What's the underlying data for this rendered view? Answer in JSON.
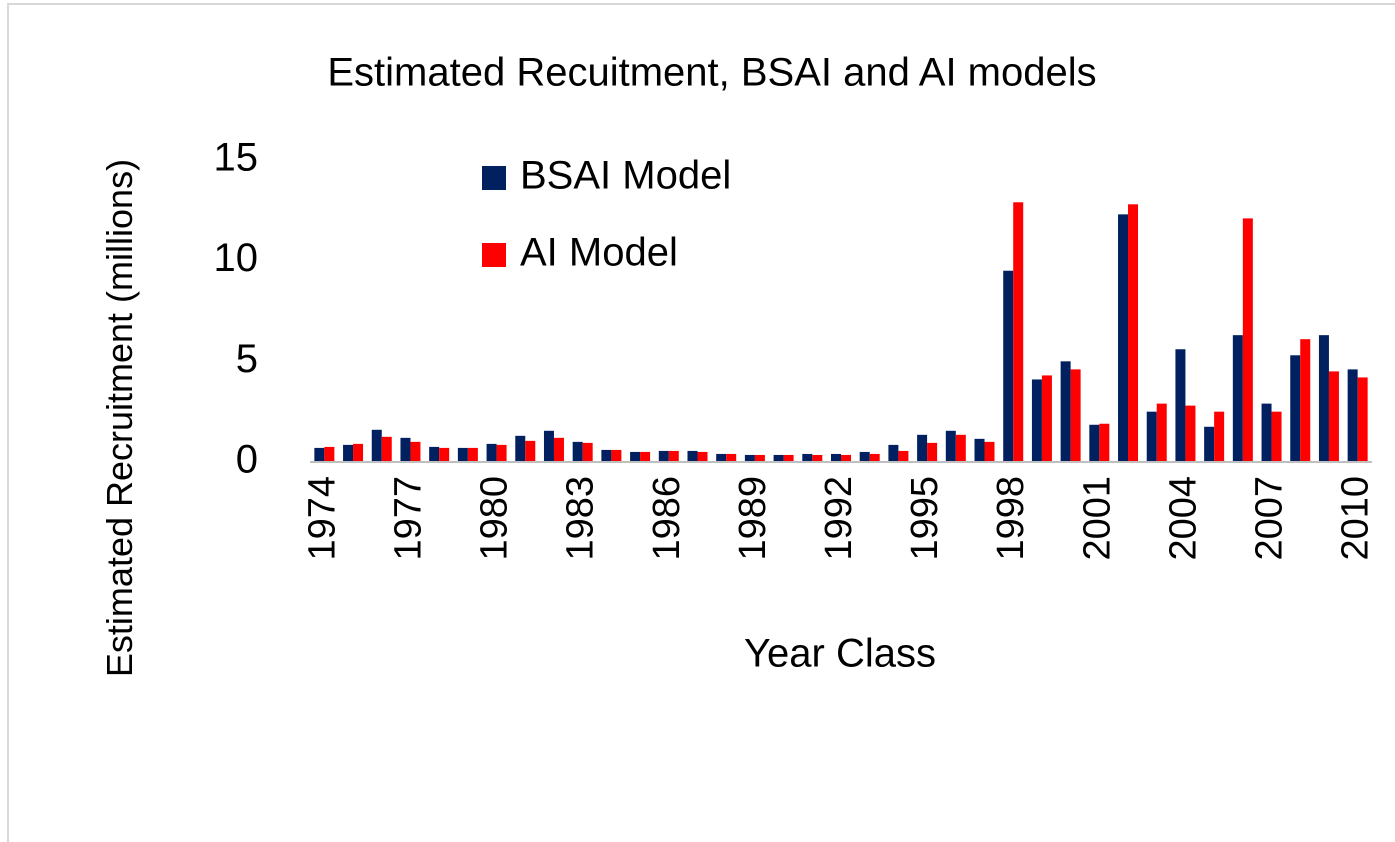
{
  "chart_data": {
    "type": "bar",
    "title": "Estimated Recuitment, BSAI and AI models",
    "xlabel": "Year Class",
    "ylabel": "Estimated Recruitment (millions)",
    "categories": [
      "1974",
      null,
      null,
      "1977",
      null,
      null,
      "1980",
      null,
      null,
      "1983",
      null,
      null,
      "1986",
      null,
      null,
      "1989",
      null,
      null,
      "1992",
      null,
      null,
      "1995",
      null,
      null,
      "1998",
      null,
      null,
      "2001",
      null,
      null,
      "2004",
      null,
      null,
      "2007",
      null,
      null,
      "2010"
    ],
    "series": [
      {
        "name": "BSAI Model",
        "color": "#002060",
        "values": [
          0.7,
          0.85,
          1.6,
          1.2,
          0.75,
          0.7,
          0.9,
          1.3,
          1.55,
          1.0,
          0.6,
          0.5,
          0.55,
          0.55,
          0.4,
          0.35,
          0.35,
          0.4,
          0.4,
          0.5,
          0.85,
          1.35,
          1.55,
          1.15,
          9.5,
          4.1,
          5.0,
          1.85,
          12.3,
          2.5,
          5.6,
          1.75,
          6.3,
          2.9,
          5.3,
          6.3,
          4.6
        ]
      },
      {
        "name": "AI Model",
        "color": "#ff0000",
        "values": [
          0.75,
          0.9,
          1.25,
          1.0,
          0.7,
          0.7,
          0.85,
          1.05,
          1.2,
          0.95,
          0.6,
          0.5,
          0.55,
          0.5,
          0.4,
          0.35,
          0.35,
          0.35,
          0.35,
          0.4,
          0.55,
          0.95,
          1.35,
          1.0,
          12.9,
          4.3,
          4.6,
          1.9,
          12.8,
          2.9,
          2.8,
          2.5,
          12.1,
          2.5,
          6.1,
          4.5,
          4.2
        ]
      }
    ],
    "ylim": [
      0,
      15
    ],
    "yticks": [
      0,
      5,
      10,
      15
    ],
    "grid": false,
    "legend": "top-left"
  }
}
